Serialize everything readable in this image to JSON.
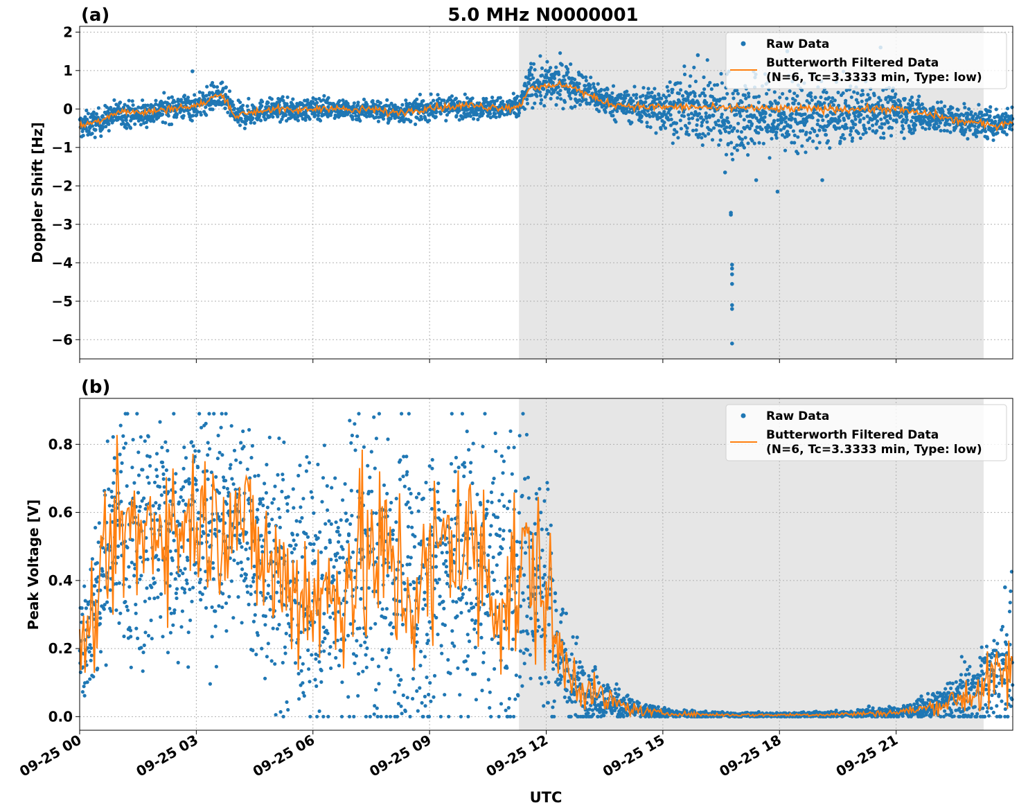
{
  "figure": {
    "title": "5.0 MHz N0000001",
    "xlabel": "UTC",
    "x_tick_labels": [
      "09-25 00",
      "09-25 03",
      "09-25 06",
      "09-25 09",
      "09-25 12",
      "09-25 15",
      "09-25 18",
      "09-25 21"
    ]
  },
  "colors": {
    "raw": "#1f77b4",
    "filtered": "#ff7f0e",
    "night_shade": "#e6e6e6",
    "grid": "#b0b0b0"
  },
  "chart_data": [
    {
      "type": "scatter",
      "panel_label": "(a)",
      "title": "5.0 MHz N0000001",
      "ylabel": "Doppler Shift [Hz]",
      "xlabel": "",
      "x_unit": "hours UTC on 09-25",
      "xlim": [
        0,
        24
      ],
      "ylim": [
        -6.5,
        2.15
      ],
      "y_ticks": [
        -6,
        -5,
        -4,
        -3,
        -2,
        -1,
        0,
        1,
        2
      ],
      "y_tick_labels": [
        "−6",
        "−5",
        "−4",
        "−3",
        "−2",
        "−1",
        "0",
        "1",
        "2"
      ],
      "grid": true,
      "legend_position": "top-right",
      "shaded_interval": [
        11.3,
        23.25
      ],
      "legend": [
        "Raw Data",
        "Butterworth Filtered Data",
        "(N=6, Tc=3.3333 min, Type: low)"
      ],
      "series": [
        {
          "name": "Raw Data",
          "style": "markers",
          "x": [
            0,
            0.5,
            1,
            1.5,
            2,
            2.5,
            2.9,
            3.2,
            3.5,
            3.75,
            4,
            4.3,
            4.6,
            5,
            5.5,
            6,
            6.5,
            7,
            7.5,
            8,
            8.5,
            9,
            9.5,
            10,
            10.5,
            11,
            11.3,
            11.6,
            11.9,
            12.2,
            12.5,
            12.8,
            13.2,
            13.6,
            14,
            14.5,
            15,
            15.5,
            16,
            16.5,
            17,
            17.5,
            18,
            18.5,
            19,
            19.5,
            20,
            20.5,
            21,
            21.5,
            22,
            22.5,
            23,
            23.5,
            24
          ],
          "y": [
            -0.45,
            -0.35,
            -0.1,
            -0.15,
            -0.05,
            0.05,
            0.05,
            0.15,
            0.35,
            0.25,
            -0.2,
            -0.15,
            -0.05,
            0,
            -0.05,
            0,
            0.05,
            -0.05,
            0,
            -0.1,
            -0.05,
            0,
            0.05,
            0.05,
            0.05,
            0,
            0.05,
            0.7,
            0.6,
            0.65,
            0.7,
            0.55,
            0.35,
            0.2,
            0.1,
            0.05,
            0.05,
            0.05,
            0,
            -0.1,
            -0.2,
            -0.15,
            -0.25,
            -0.2,
            -0.15,
            -0.2,
            -0.1,
            0,
            -0.05,
            -0.15,
            -0.2,
            -0.3,
            -0.35,
            -0.4,
            -0.3
          ],
          "spread": [
            0.3,
            0.3,
            0.3,
            0.3,
            0.3,
            0.3,
            0.3,
            0.3,
            0.35,
            0.3,
            0.3,
            0.3,
            0.25,
            0.25,
            0.25,
            0.25,
            0.25,
            0.25,
            0.25,
            0.25,
            0.25,
            0.25,
            0.25,
            0.25,
            0.25,
            0.25,
            0.3,
            0.45,
            0.5,
            0.5,
            0.5,
            0.45,
            0.4,
            0.35,
            0.35,
            0.45,
            0.6,
            0.7,
            0.8,
            0.9,
            1.0,
            0.9,
            0.8,
            0.8,
            0.75,
            0.7,
            0.7,
            0.6,
            0.5,
            0.4,
            0.35,
            0.35,
            0.35,
            0.35,
            0.3
          ],
          "outliers": [
            [
              2.9,
              0.98
            ],
            [
              16.75,
              -2.7
            ],
            [
              16.75,
              -2.75
            ],
            [
              16.78,
              -4.05
            ],
            [
              16.78,
              -4.15
            ],
            [
              16.78,
              -4.3
            ],
            [
              16.78,
              -4.55
            ],
            [
              16.78,
              -5.1
            ],
            [
              16.78,
              -5.2
            ],
            [
              16.78,
              -6.1
            ],
            [
              17.95,
              -2.15
            ],
            [
              17.4,
              -1.85
            ],
            [
              16.6,
              -1.65
            ],
            [
              19.1,
              -1.85
            ],
            [
              15.9,
              1.4
            ],
            [
              18.2,
              1.5
            ],
            [
              20.6,
              1.6
            ]
          ]
        },
        {
          "name": "Butterworth Filtered Data",
          "style": "line",
          "x": [
            0,
            0.5,
            1,
            1.5,
            2,
            2.5,
            2.9,
            3.2,
            3.5,
            3.75,
            4,
            4.3,
            4.6,
            5,
            5.5,
            6,
            6.5,
            7,
            7.5,
            8,
            8.5,
            9,
            9.5,
            10,
            10.5,
            11,
            11.3,
            11.6,
            11.9,
            12.2,
            12.5,
            12.8,
            13.2,
            13.6,
            14,
            14.5,
            15,
            15.5,
            16,
            16.5,
            17,
            17.5,
            18,
            18.5,
            19,
            19.5,
            20,
            20.5,
            21,
            21.5,
            22,
            22.5,
            23,
            23.5,
            24
          ],
          "y": [
            -0.45,
            -0.3,
            -0.05,
            -0.1,
            -0.05,
            0.05,
            0.05,
            0.15,
            0.35,
            0.3,
            -0.2,
            -0.1,
            -0.05,
            0,
            -0.05,
            0,
            0.05,
            -0.05,
            0,
            -0.1,
            -0.05,
            0.05,
            0.05,
            0.1,
            0.05,
            0.05,
            0.05,
            0.6,
            0.55,
            0.6,
            0.65,
            0.5,
            0.3,
            0.15,
            0.1,
            0.05,
            0.05,
            0.05,
            0.05,
            0,
            0.05,
            0,
            0,
            0,
            0,
            0,
            0,
            0,
            0,
            -0.1,
            -0.15,
            -0.3,
            -0.35,
            -0.45,
            -0.3
          ]
        }
      ]
    },
    {
      "type": "scatter",
      "panel_label": "(b)",
      "title": "",
      "ylabel": "Peak Voltage [V]",
      "xlabel": "UTC",
      "x_unit": "hours UTC on 09-25",
      "xlim": [
        0,
        24
      ],
      "ylim": [
        -0.04,
        0.935
      ],
      "y_ticks": [
        0.0,
        0.2,
        0.4,
        0.6,
        0.8
      ],
      "y_tick_labels": [
        "0.0",
        "0.2",
        "0.4",
        "0.6",
        "0.8"
      ],
      "grid": true,
      "legend_position": "top-right",
      "shaded_interval": [
        11.3,
        23.25
      ],
      "legend": [
        "Raw Data",
        "Butterworth Filtered Data",
        "(N=6, Tc=3.3333 min, Type: low)"
      ],
      "series": [
        {
          "name": "Raw Data",
          "style": "markers",
          "x": [
            0,
            0.25,
            0.5,
            0.75,
            1,
            1.25,
            1.5,
            2,
            2.5,
            3,
            3.5,
            4,
            4.5,
            5,
            5.5,
            6,
            6.5,
            7,
            7.5,
            8,
            8.5,
            9,
            9.5,
            10,
            10.5,
            11,
            11.5,
            12,
            12.25,
            12.5,
            12.75,
            13,
            13.5,
            14,
            14.5,
            15,
            16,
            17,
            18,
            19,
            20,
            21,
            21.5,
            22,
            22.5,
            23,
            23.5,
            24
          ],
          "y": [
            0.2,
            0.28,
            0.38,
            0.5,
            0.55,
            0.52,
            0.5,
            0.56,
            0.55,
            0.58,
            0.55,
            0.6,
            0.5,
            0.42,
            0.38,
            0.36,
            0.35,
            0.4,
            0.42,
            0.4,
            0.35,
            0.38,
            0.45,
            0.45,
            0.42,
            0.4,
            0.45,
            0.35,
            0.2,
            0.14,
            0.1,
            0.07,
            0.05,
            0.03,
            0.015,
            0.01,
            0.006,
            0.005,
            0.005,
            0.006,
            0.008,
            0.012,
            0.02,
            0.03,
            0.05,
            0.07,
            0.11,
            0.16
          ],
          "spread": [
            0.12,
            0.18,
            0.25,
            0.3,
            0.32,
            0.35,
            0.35,
            0.32,
            0.33,
            0.3,
            0.32,
            0.28,
            0.32,
            0.33,
            0.35,
            0.35,
            0.35,
            0.4,
            0.42,
            0.42,
            0.4,
            0.42,
            0.42,
            0.42,
            0.42,
            0.42,
            0.4,
            0.35,
            0.22,
            0.15,
            0.12,
            0.09,
            0.06,
            0.035,
            0.02,
            0.012,
            0.008,
            0.006,
            0.006,
            0.007,
            0.01,
            0.015,
            0.02,
            0.035,
            0.06,
            0.1,
            0.14,
            0.18
          ],
          "outliers": [
            [
              20.3,
              0.03
            ],
            [
              23.8,
              0.38
            ],
            [
              0.9,
              0.76
            ]
          ]
        },
        {
          "name": "Butterworth Filtered Data",
          "style": "line",
          "x": [
            0,
            0.25,
            0.5,
            0.75,
            1,
            1.25,
            1.5,
            2,
            2.5,
            3,
            3.5,
            4,
            4.5,
            5,
            5.5,
            6,
            6.5,
            7,
            7.5,
            8,
            8.5,
            9,
            9.5,
            10,
            10.5,
            11,
            11.5,
            12,
            12.25,
            12.5,
            12.75,
            13,
            13.5,
            14,
            14.5,
            15,
            16,
            17,
            18,
            19,
            20,
            21,
            21.5,
            22,
            22.5,
            23,
            23.5,
            24
          ],
          "y": [
            0.2,
            0.25,
            0.35,
            0.45,
            0.55,
            0.55,
            0.52,
            0.58,
            0.55,
            0.6,
            0.55,
            0.62,
            0.5,
            0.42,
            0.38,
            0.36,
            0.34,
            0.45,
            0.45,
            0.45,
            0.35,
            0.4,
            0.55,
            0.5,
            0.42,
            0.35,
            0.45,
            0.38,
            0.2,
            0.15,
            0.12,
            0.08,
            0.05,
            0.03,
            0.015,
            0.01,
            0.006,
            0.005,
            0.005,
            0.006,
            0.008,
            0.012,
            0.02,
            0.03,
            0.05,
            0.07,
            0.1,
            0.15
          ]
        }
      ]
    }
  ]
}
